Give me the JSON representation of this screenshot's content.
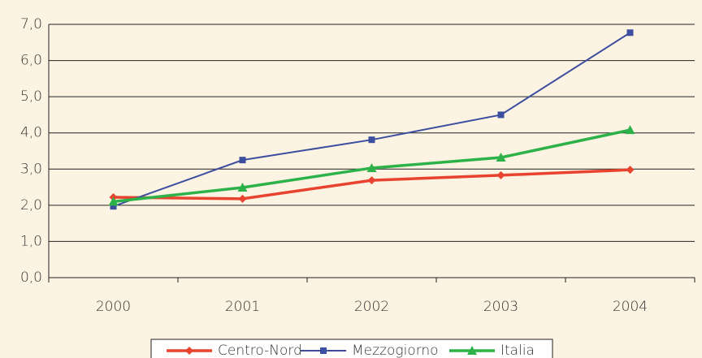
{
  "chart_data": {
    "type": "line",
    "categories": [
      "2000",
      "2001",
      "2002",
      "2003",
      "2004"
    ],
    "series": [
      {
        "name": "Centro-Nord",
        "color": "#e8432e",
        "marker": "diamond",
        "values": [
          2.22,
          2.18,
          2.69,
          2.83,
          2.98
        ]
      },
      {
        "name": "Mezzogiorno",
        "color": "#3b4ea0",
        "marker": "square",
        "values": [
          1.97,
          3.25,
          3.81,
          4.5,
          6.77
        ]
      },
      {
        "name": "Italia",
        "color": "#2db24a",
        "marker": "triangle",
        "values": [
          2.1,
          2.49,
          3.03,
          3.32,
          4.08
        ]
      }
    ],
    "ylim": [
      0,
      7
    ],
    "yticks": [
      {
        "value": 0,
        "label": "0,0"
      },
      {
        "value": 1,
        "label": "1,0"
      },
      {
        "value": 2,
        "label": "2,0"
      },
      {
        "value": 3,
        "label": "3,0"
      },
      {
        "value": 4,
        "label": "4,0"
      },
      {
        "value": 5,
        "label": "5,0"
      },
      {
        "value": 6,
        "label": "6,0"
      },
      {
        "value": 7,
        "label": "7,0"
      }
    ],
    "grid": true,
    "legend": "bottom"
  }
}
